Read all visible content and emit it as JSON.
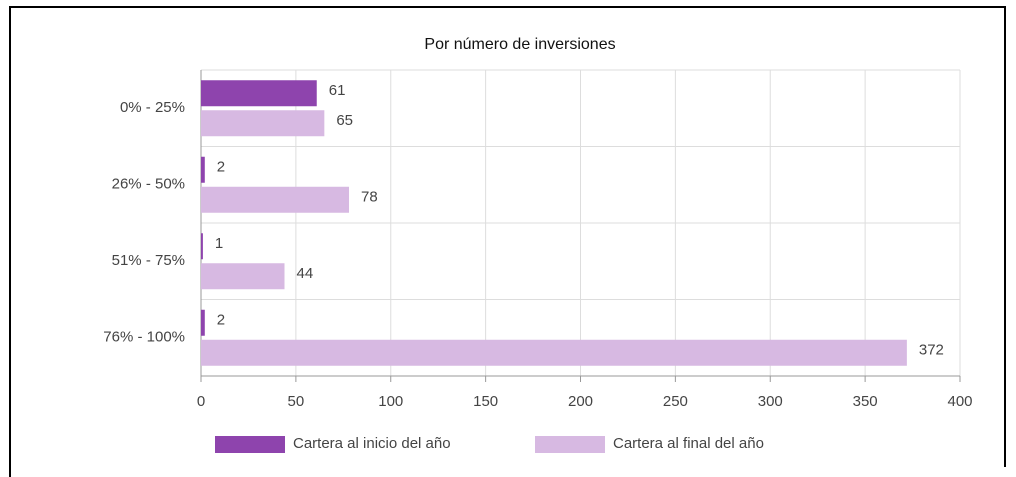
{
  "chart_data": {
    "type": "bar",
    "orientation": "horizontal",
    "title": "Por número de inversiones",
    "categories": [
      "0% - 25%",
      "26% - 50%",
      "51% - 75%",
      "76% - 100%"
    ],
    "series": [
      {
        "name": "Cartera al inicio del año",
        "color": "#8e44ad",
        "values": [
          61,
          2,
          1,
          2
        ]
      },
      {
        "name": "Cartera al final del año",
        "color": "#d7b9e2",
        "values": [
          65,
          78,
          44,
          372
        ]
      }
    ],
    "xlim": [
      0,
      400
    ],
    "xticks": [
      0,
      50,
      100,
      150,
      200,
      250,
      300,
      350,
      400
    ],
    "grid": true,
    "legend": "bottom"
  }
}
